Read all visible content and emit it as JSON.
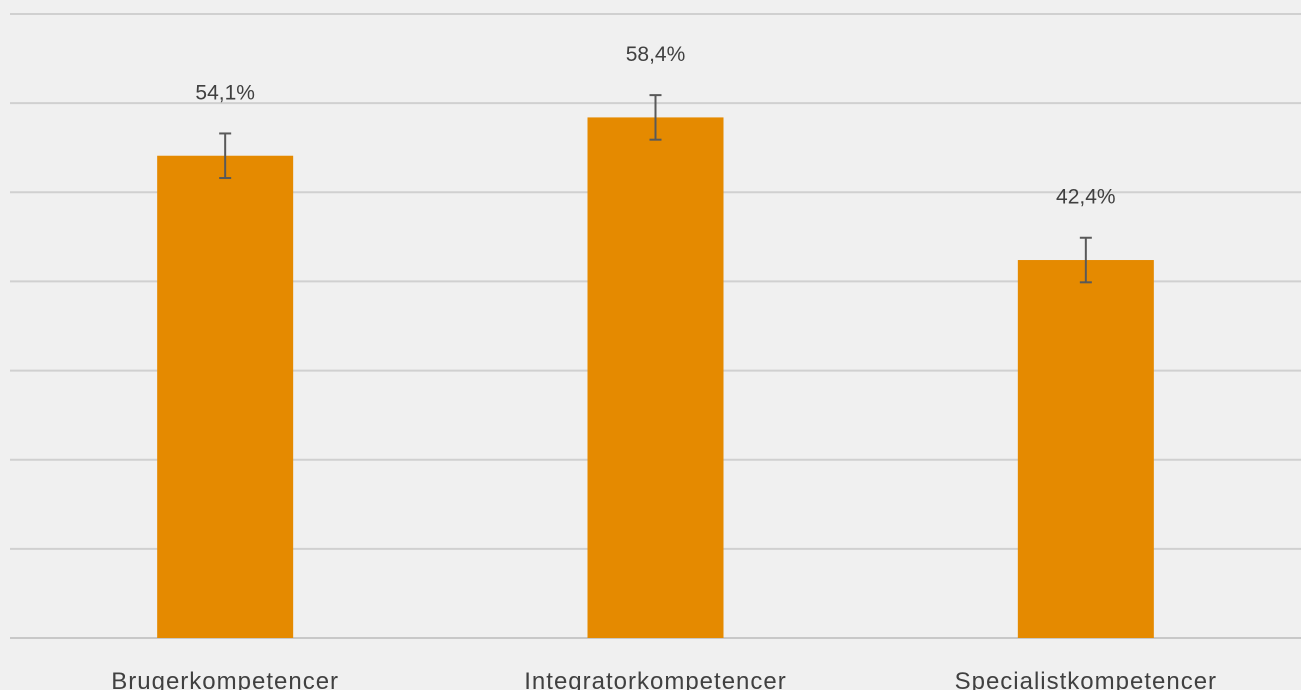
{
  "chart_data": {
    "type": "bar",
    "categories": [
      "Brugerkompetencer",
      "Integratorkompetencer",
      "Specialistkompetencer"
    ],
    "values": [
      54.1,
      58.4,
      42.4
    ],
    "data_labels": [
      "54,1%",
      "58,4%",
      "42,4%"
    ],
    "error_bars": [
      {
        "low": 51.6,
        "high": 56.6
      },
      {
        "low": 55.9,
        "high": 60.9
      },
      {
        "low": 39.9,
        "high": 44.9
      }
    ],
    "unit": "%",
    "ylim": [
      0,
      70
    ],
    "grid": true,
    "y_tick_labels_shown": false,
    "legend": "none",
    "colors": {
      "bar": "#e58a00",
      "error_bar": "#595959",
      "gridline": "#d0d0d0",
      "background": "#f0f0f0",
      "text": "#404040"
    }
  }
}
